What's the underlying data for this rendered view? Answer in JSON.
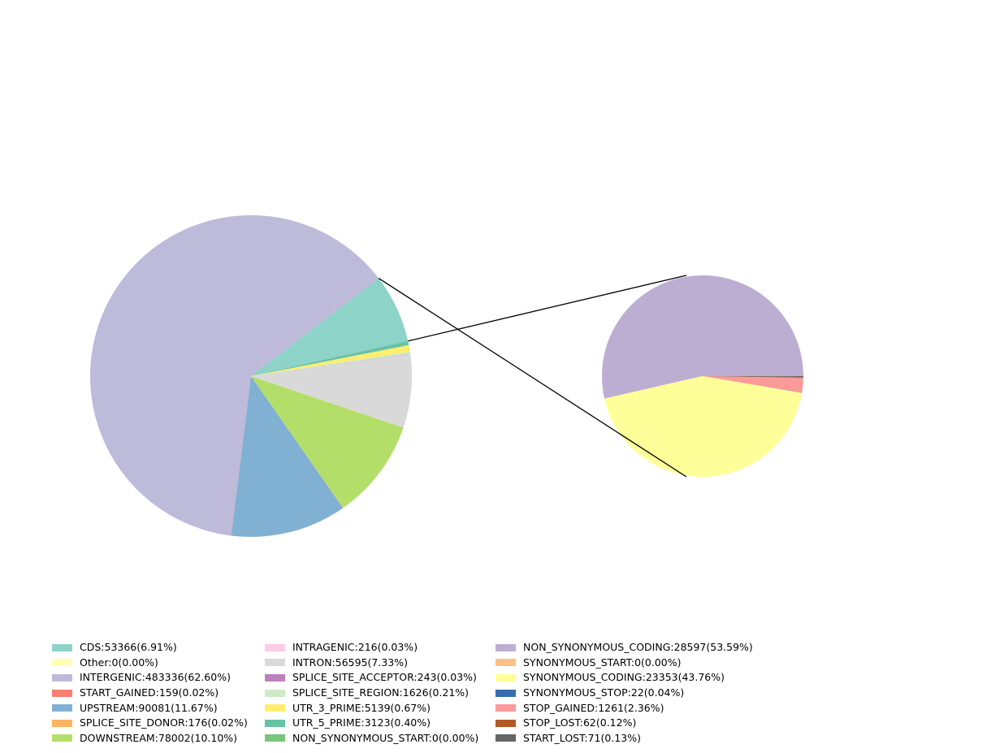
{
  "chart_data": [
    {
      "type": "pie",
      "name": "variant-effects",
      "start_angle_deg": 12.59,
      "slices": [
        {
          "label": "CDS",
          "value": 53366,
          "percent": 6.91,
          "color": "#8dd3c7"
        },
        {
          "label": "Other",
          "value": 0,
          "percent": 0.0,
          "color": "#ffffb3"
        },
        {
          "label": "INTERGENIC",
          "value": 483336,
          "percent": 62.6,
          "color": "#bebada"
        },
        {
          "label": "START_GAINED",
          "value": 159,
          "percent": 0.02,
          "color": "#fb8072"
        },
        {
          "label": "UPSTREAM",
          "value": 90081,
          "percent": 11.67,
          "color": "#80b1d3"
        },
        {
          "label": "SPLICE_SITE_DONOR",
          "value": 176,
          "percent": 0.02,
          "color": "#fdb462"
        },
        {
          "label": "DOWNSTREAM",
          "value": 78002,
          "percent": 10.1,
          "color": "#b3de69"
        },
        {
          "label": "INTRAGENIC",
          "value": 216,
          "percent": 0.03,
          "color": "#fccde5"
        },
        {
          "label": "INTRON",
          "value": 56595,
          "percent": 7.33,
          "color": "#d9d9d9"
        },
        {
          "label": "SPLICE_SITE_ACCEPTOR",
          "value": 243,
          "percent": 0.03,
          "color": "#bc80bd"
        },
        {
          "label": "SPLICE_SITE_REGION",
          "value": 1626,
          "percent": 0.21,
          "color": "#ccebc5"
        },
        {
          "label": "UTR_3_PRIME",
          "value": 5139,
          "percent": 0.67,
          "color": "#ffed6f"
        },
        {
          "label": "UTR_5_PRIME",
          "value": 3123,
          "percent": 0.4,
          "color": "#66c2a5"
        },
        {
          "label": "NON_SYNONYMOUS_START",
          "value": 0,
          "percent": 0.0,
          "color": "#78c679"
        }
      ]
    },
    {
      "type": "pie",
      "name": "cds-breakdown",
      "start_angle_deg": 0,
      "slices": [
        {
          "label": "NON_SYNONYMOUS_CODING",
          "value": 28597,
          "percent": 53.59,
          "color": "#bcaed3"
        },
        {
          "label": "SYNONYMOUS_START",
          "value": 0,
          "percent": 0.0,
          "color": "#fdc086"
        },
        {
          "label": "SYNONYMOUS_CODING",
          "value": 23353,
          "percent": 43.76,
          "color": "#ffff99"
        },
        {
          "label": "SYNONYMOUS_STOP",
          "value": 22,
          "percent": 0.04,
          "color": "#386cb0"
        },
        {
          "label": "STOP_GAINED",
          "value": 1261,
          "percent": 2.36,
          "color": "#fb9a99"
        },
        {
          "label": "STOP_LOST",
          "value": 62,
          "percent": 0.12,
          "color": "#b15928"
        },
        {
          "label": "START_LOST",
          "value": 71,
          "percent": 0.13,
          "color": "#666666"
        }
      ]
    }
  ],
  "legend": {
    "columns": [
      [
        {
          "text": "CDS:53366(6.91%)",
          "color": "#8dd3c7"
        },
        {
          "text": "Other:0(0.00%)",
          "color": "#ffffb3"
        },
        {
          "text": "INTERGENIC:483336(62.60%)",
          "color": "#bebada"
        },
        {
          "text": "START_GAINED:159(0.02%)",
          "color": "#fb8072"
        },
        {
          "text": "UPSTREAM:90081(11.67%)",
          "color": "#80b1d3"
        },
        {
          "text": "SPLICE_SITE_DONOR:176(0.02%)",
          "color": "#fdb462"
        },
        {
          "text": "DOWNSTREAM:78002(10.10%)",
          "color": "#b3de69"
        }
      ],
      [
        {
          "text": "INTRAGENIC:216(0.03%)",
          "color": "#fccde5"
        },
        {
          "text": "INTRON:56595(7.33%)",
          "color": "#d9d9d9"
        },
        {
          "text": "SPLICE_SITE_ACCEPTOR:243(0.03%)",
          "color": "#bc80bd"
        },
        {
          "text": "SPLICE_SITE_REGION:1626(0.21%)",
          "color": "#ccebc5"
        },
        {
          "text": "UTR_3_PRIME:5139(0.67%)",
          "color": "#ffed6f"
        },
        {
          "text": "UTR_5_PRIME:3123(0.40%)",
          "color": "#66c2a5"
        },
        {
          "text": "NON_SYNONYMOUS_START:0(0.00%)",
          "color": "#78c679"
        }
      ],
      [
        {
          "text": "NON_SYNONYMOUS_CODING:28597(53.59%)",
          "color": "#bcaed3"
        },
        {
          "text": "SYNONYMOUS_START:0(0.00%)",
          "color": "#fdc086"
        },
        {
          "text": "SYNONYMOUS_CODING:23353(43.76%)",
          "color": "#ffff99"
        },
        {
          "text": "SYNONYMOUS_STOP:22(0.04%)",
          "color": "#386cb0"
        },
        {
          "text": "STOP_GAINED:1261(2.36%)",
          "color": "#fb9a99"
        },
        {
          "text": "STOP_LOST:62(0.12%)",
          "color": "#b15928"
        },
        {
          "text": "START_LOST:71(0.13%)",
          "color": "#666666"
        }
      ]
    ]
  }
}
